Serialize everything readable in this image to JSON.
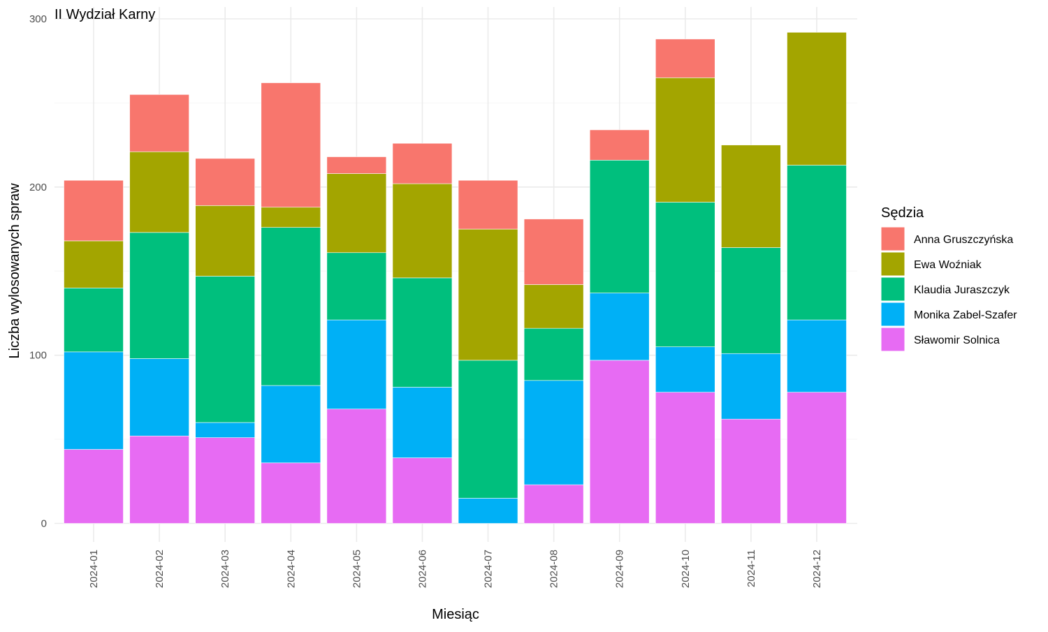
{
  "chart_data": {
    "type": "bar",
    "stacked": true,
    "title": "II Wydział Karny",
    "xlabel": "Miesiąc",
    "ylabel": "Liczba wylosowanych spraw",
    "ylim": [
      0,
      300
    ],
    "yticks": [
      0,
      100,
      200,
      300
    ],
    "grid": true,
    "legend_title": "Sędzia",
    "legend_position": "right",
    "categories": [
      "2024-01",
      "2024-02",
      "2024-03",
      "2024-04",
      "2024-05",
      "2024-06",
      "2024-07",
      "2024-08",
      "2024-09",
      "2024-10",
      "2024-11",
      "2024-12"
    ],
    "series": [
      {
        "name": "Sławomir Solnica",
        "color": "#E76BF3",
        "values": [
          44,
          52,
          51,
          36,
          68,
          39,
          0,
          23,
          97,
          78,
          62,
          78
        ]
      },
      {
        "name": "Monika Zabel-Szafer",
        "color": "#00B0F6",
        "values": [
          58,
          46,
          9,
          46,
          53,
          42,
          15,
          62,
          40,
          27,
          39,
          43
        ]
      },
      {
        "name": "Klaudia Juraszczyk",
        "color": "#00BF7D",
        "values": [
          38,
          75,
          87,
          94,
          40,
          65,
          82,
          31,
          79,
          86,
          63,
          92
        ]
      },
      {
        "name": "Ewa Woźniak",
        "color": "#A3A500",
        "values": [
          28,
          48,
          42,
          12,
          47,
          56,
          78,
          26,
          0,
          74,
          61,
          79
        ]
      },
      {
        "name": "Anna Gruszczyńska",
        "color": "#F8766D",
        "values": [
          36,
          34,
          28,
          74,
          10,
          24,
          29,
          39,
          18,
          23,
          0,
          0
        ]
      }
    ],
    "legend_order": [
      "Anna Gruszczyńska",
      "Ewa Woźniak",
      "Klaudia Juraszczyk",
      "Monika Zabel-Szafer",
      "Sławomir Solnica"
    ]
  }
}
